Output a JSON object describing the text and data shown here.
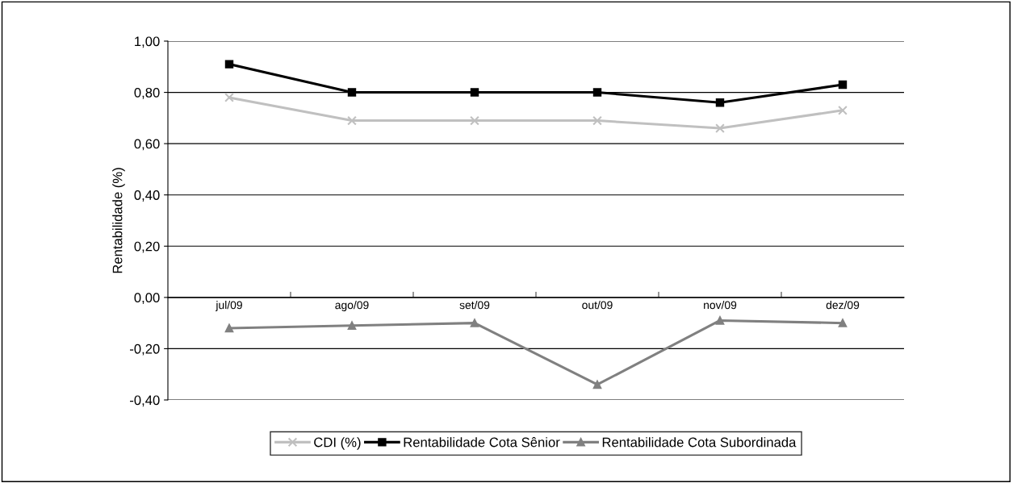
{
  "chart_data": {
    "type": "line",
    "ylabel": "Rentabilidade (%)",
    "categories": [
      "jul/09",
      "ago/09",
      "set/09",
      "out/09",
      "nov/09",
      "dez/09"
    ],
    "series": [
      {
        "name": "CDI (%)",
        "color": "#c0c0c0",
        "marker": "cross",
        "values": [
          0.78,
          0.69,
          0.69,
          0.69,
          0.66,
          0.73
        ]
      },
      {
        "name": "Rentabilidade Cota Sênior",
        "color": "#000000",
        "marker": "square",
        "values": [
          0.91,
          0.8,
          0.8,
          0.8,
          0.76,
          0.83
        ]
      },
      {
        "name": "Rentabilidade Cota Subordinada",
        "color": "#808080",
        "marker": "triangle",
        "values": [
          -0.12,
          -0.11,
          -0.1,
          -0.34,
          -0.09,
          -0.1
        ]
      }
    ],
    "ylim": [
      -0.4,
      1.0
    ],
    "yticks": [
      {
        "value": -0.4,
        "label": "-0,40"
      },
      {
        "value": -0.2,
        "label": "-0,20"
      },
      {
        "value": 0,
        "label": "0,00"
      },
      {
        "value": 0.2,
        "label": "0,20"
      },
      {
        "value": 0.4,
        "label": "0,40"
      },
      {
        "value": 0.6,
        "label": "0,60"
      },
      {
        "value": 0.8,
        "label": "0,80"
      },
      {
        "value": 1.0,
        "label": "1,00"
      }
    ],
    "grid": "y",
    "legend": "bottom",
    "line_style": "solid"
  }
}
